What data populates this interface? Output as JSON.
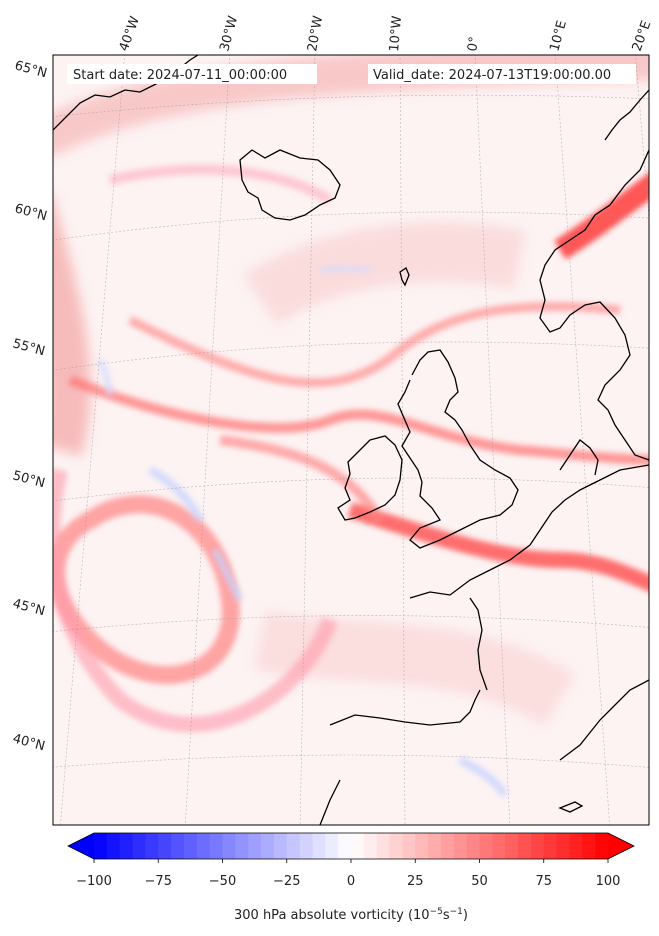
{
  "header": {
    "start_label": "Start date: 2024-07-11_00:00:00",
    "valid_label": "Valid_date: 2024-07-13T19:00:00.00"
  },
  "map": {
    "projection": "conic",
    "lon_labels": [
      "40°W",
      "30°W",
      "20°W",
      "10°W",
      "0°",
      "10°E",
      "20°E"
    ],
    "lat_labels": [
      "65°N",
      "60°N",
      "55°N",
      "50°N",
      "45°N",
      "40°N"
    ],
    "gridlines": true
  },
  "colorbar": {
    "ticks": [
      "−100",
      "−75",
      "−50",
      "−25",
      "0",
      "25",
      "50",
      "75",
      "100"
    ],
    "min": -100,
    "max": 100,
    "extend": "both",
    "label": "300 hPa absolute vorticity (10",
    "label_exp1": "−5",
    "label_mid": "s",
    "label_exp2": "−1",
    "label_close": ")",
    "colors": {
      "low": "#0000ff",
      "mid": "#ffffff",
      "high": "#ff0000"
    }
  }
}
